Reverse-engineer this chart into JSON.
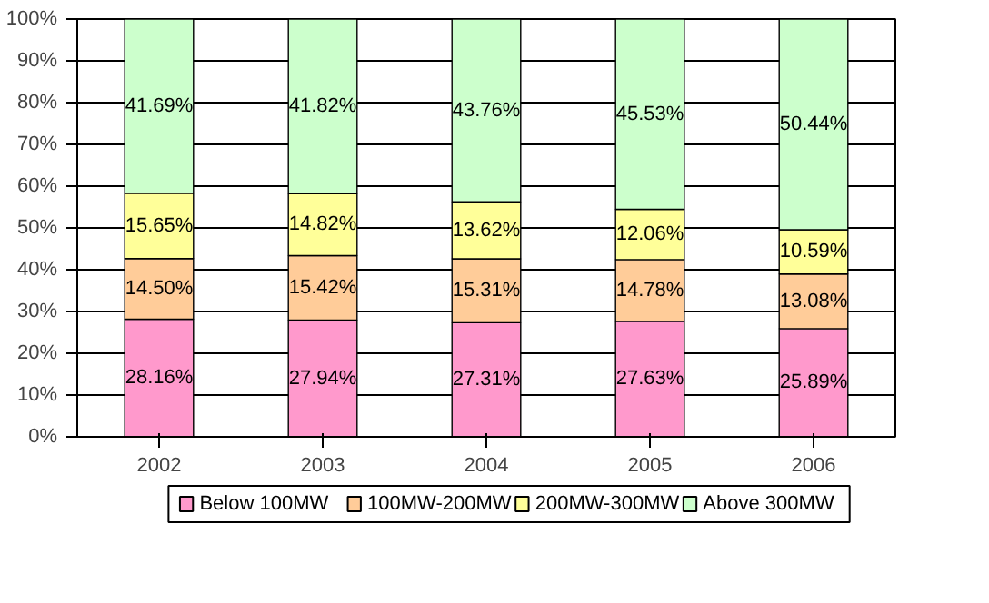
{
  "chart_data": {
    "type": "bar",
    "stacked": true,
    "categories": [
      "2002",
      "2003",
      "2004",
      "2005",
      "2006"
    ],
    "series": [
      {
        "name": "Below 100MW",
        "color": "#ff99cc",
        "values": [
          28.16,
          27.94,
          27.31,
          27.63,
          25.89
        ],
        "value_labels": [
          "28.16%",
          "27.94%",
          "27.31%",
          "27.63%",
          "25.89%"
        ]
      },
      {
        "name": "100MW-200MW",
        "color": "#ffcc99",
        "values": [
          14.5,
          15.42,
          15.31,
          14.78,
          13.08
        ],
        "value_labels": [
          "14.50%",
          "15.42%",
          "15.31%",
          "14.78%",
          "13.08%"
        ]
      },
      {
        "name": "200MW-300MW",
        "color": "#ffff99",
        "values": [
          15.65,
          14.82,
          13.62,
          12.06,
          10.59
        ],
        "value_labels": [
          "15.65%",
          "14.82%",
          "13.62%",
          "12.06%",
          "10.59%"
        ]
      },
      {
        "name": "Above 300MW",
        "color": "#ccffcc",
        "values": [
          41.69,
          41.82,
          43.76,
          45.53,
          50.44
        ],
        "value_labels": [
          "41.69%",
          "41.82%",
          "43.76%",
          "45.53%",
          "50.44%"
        ]
      }
    ],
    "ylim": [
      0,
      100
    ],
    "yticks": [
      {
        "value": 0,
        "label": "0%"
      },
      {
        "value": 10,
        "label": "10%"
      },
      {
        "value": 20,
        "label": "20%"
      },
      {
        "value": 30,
        "label": "30%"
      },
      {
        "value": 40,
        "label": "40%"
      },
      {
        "value": 50,
        "label": "50%"
      },
      {
        "value": 60,
        "label": "60%"
      },
      {
        "value": 70,
        "label": "70%"
      },
      {
        "value": 80,
        "label": "80%"
      },
      {
        "value": 90,
        "label": "90%"
      },
      {
        "value": 100,
        "label": "100%"
      }
    ],
    "grid": "y",
    "legend": "bottom"
  }
}
